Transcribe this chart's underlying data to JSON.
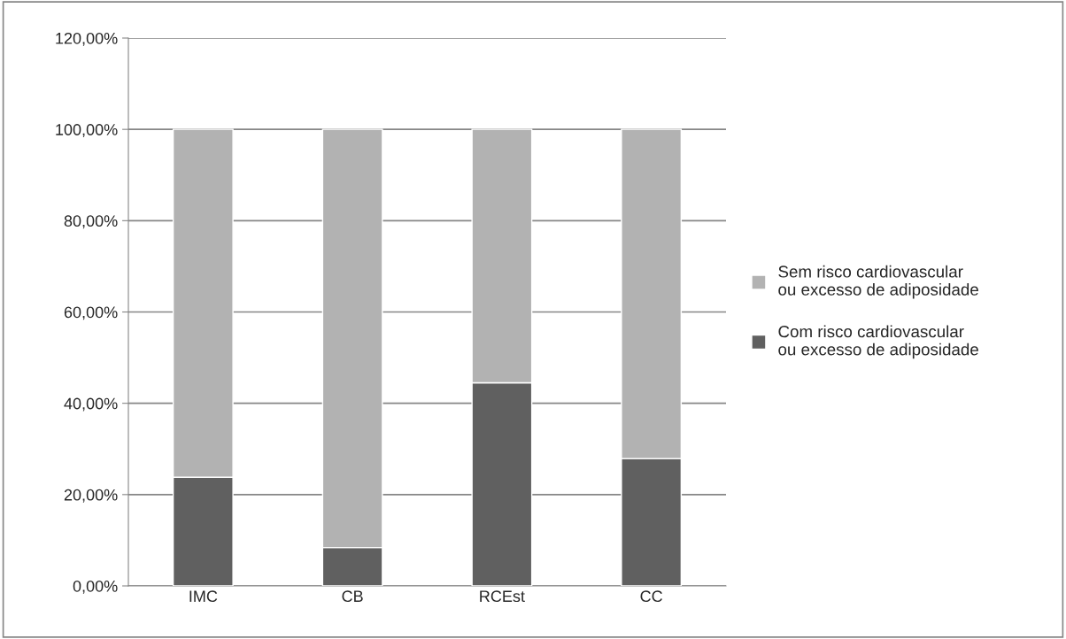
{
  "chart_data": {
    "type": "bar",
    "stacked": true,
    "categories": [
      "IMC",
      "CB",
      "RCEst",
      "CC"
    ],
    "series": [
      {
        "name": "Com risco cardiovascular ou excesso de adiposidade",
        "color": "#606060",
        "values": [
          23.8,
          8.4,
          44.5,
          27.9
        ]
      },
      {
        "name": "Sem risco cardiovascular ou excesso de adiposidade",
        "color": "#b2b2b2",
        "values": [
          76.2,
          91.6,
          55.5,
          72.1
        ]
      }
    ],
    "ylim": [
      0,
      120
    ],
    "yticks": [
      {
        "value": 0,
        "label": "0,00%"
      },
      {
        "value": 20,
        "label": "20,00%"
      },
      {
        "value": 40,
        "label": "40,00%"
      },
      {
        "value": 60,
        "label": "60,00%"
      },
      {
        "value": 80,
        "label": "80,00%"
      },
      {
        "value": 100,
        "label": "100,00%"
      },
      {
        "value": 120,
        "label": "120,00%"
      }
    ],
    "grid": "y",
    "legend": "right"
  }
}
